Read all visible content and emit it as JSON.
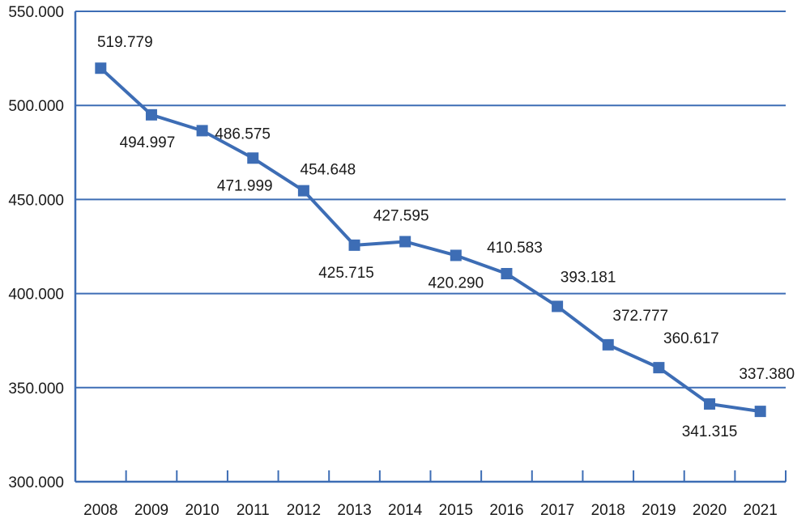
{
  "chart_data": {
    "type": "line",
    "title": "",
    "xlabel": "",
    "ylabel": "",
    "categories": [
      "2008",
      "2009",
      "2010",
      "2011",
      "2012",
      "2013",
      "2014",
      "2015",
      "2016",
      "2017",
      "2018",
      "2019",
      "2020",
      "2021"
    ],
    "series": [
      {
        "name": "Series 1",
        "values": [
          519.779,
          494.997,
          486.575,
          471.999,
          454.648,
          425.715,
          427.595,
          420.29,
          410.583,
          393.181,
          372.777,
          360.617,
          341.315,
          337.38
        ],
        "labels": [
          "519.779",
          "494.997",
          "486.575",
          "471.999",
          "454.648",
          "425.715",
          "427.595",
          "420.290",
          "410.583",
          "393.181",
          "372.777",
          "360.617",
          "341.315",
          "337.380"
        ],
        "label_positions": [
          "above",
          "below",
          "above",
          "below",
          "above",
          "below",
          "above",
          "below",
          "above",
          "above",
          "above",
          "above",
          "below",
          "above"
        ],
        "color": "#3d6db5",
        "marker": "square"
      }
    ],
    "ylim": [
      300,
      550
    ],
    "yticks": [
      300,
      350,
      400,
      450,
      500,
      550
    ],
    "ytick_labels": [
      "300.000",
      "350.000",
      "400.000",
      "450.000",
      "500.000",
      "550.000"
    ],
    "grid": true,
    "legend": "none",
    "axis_color": "#3d6db5"
  }
}
